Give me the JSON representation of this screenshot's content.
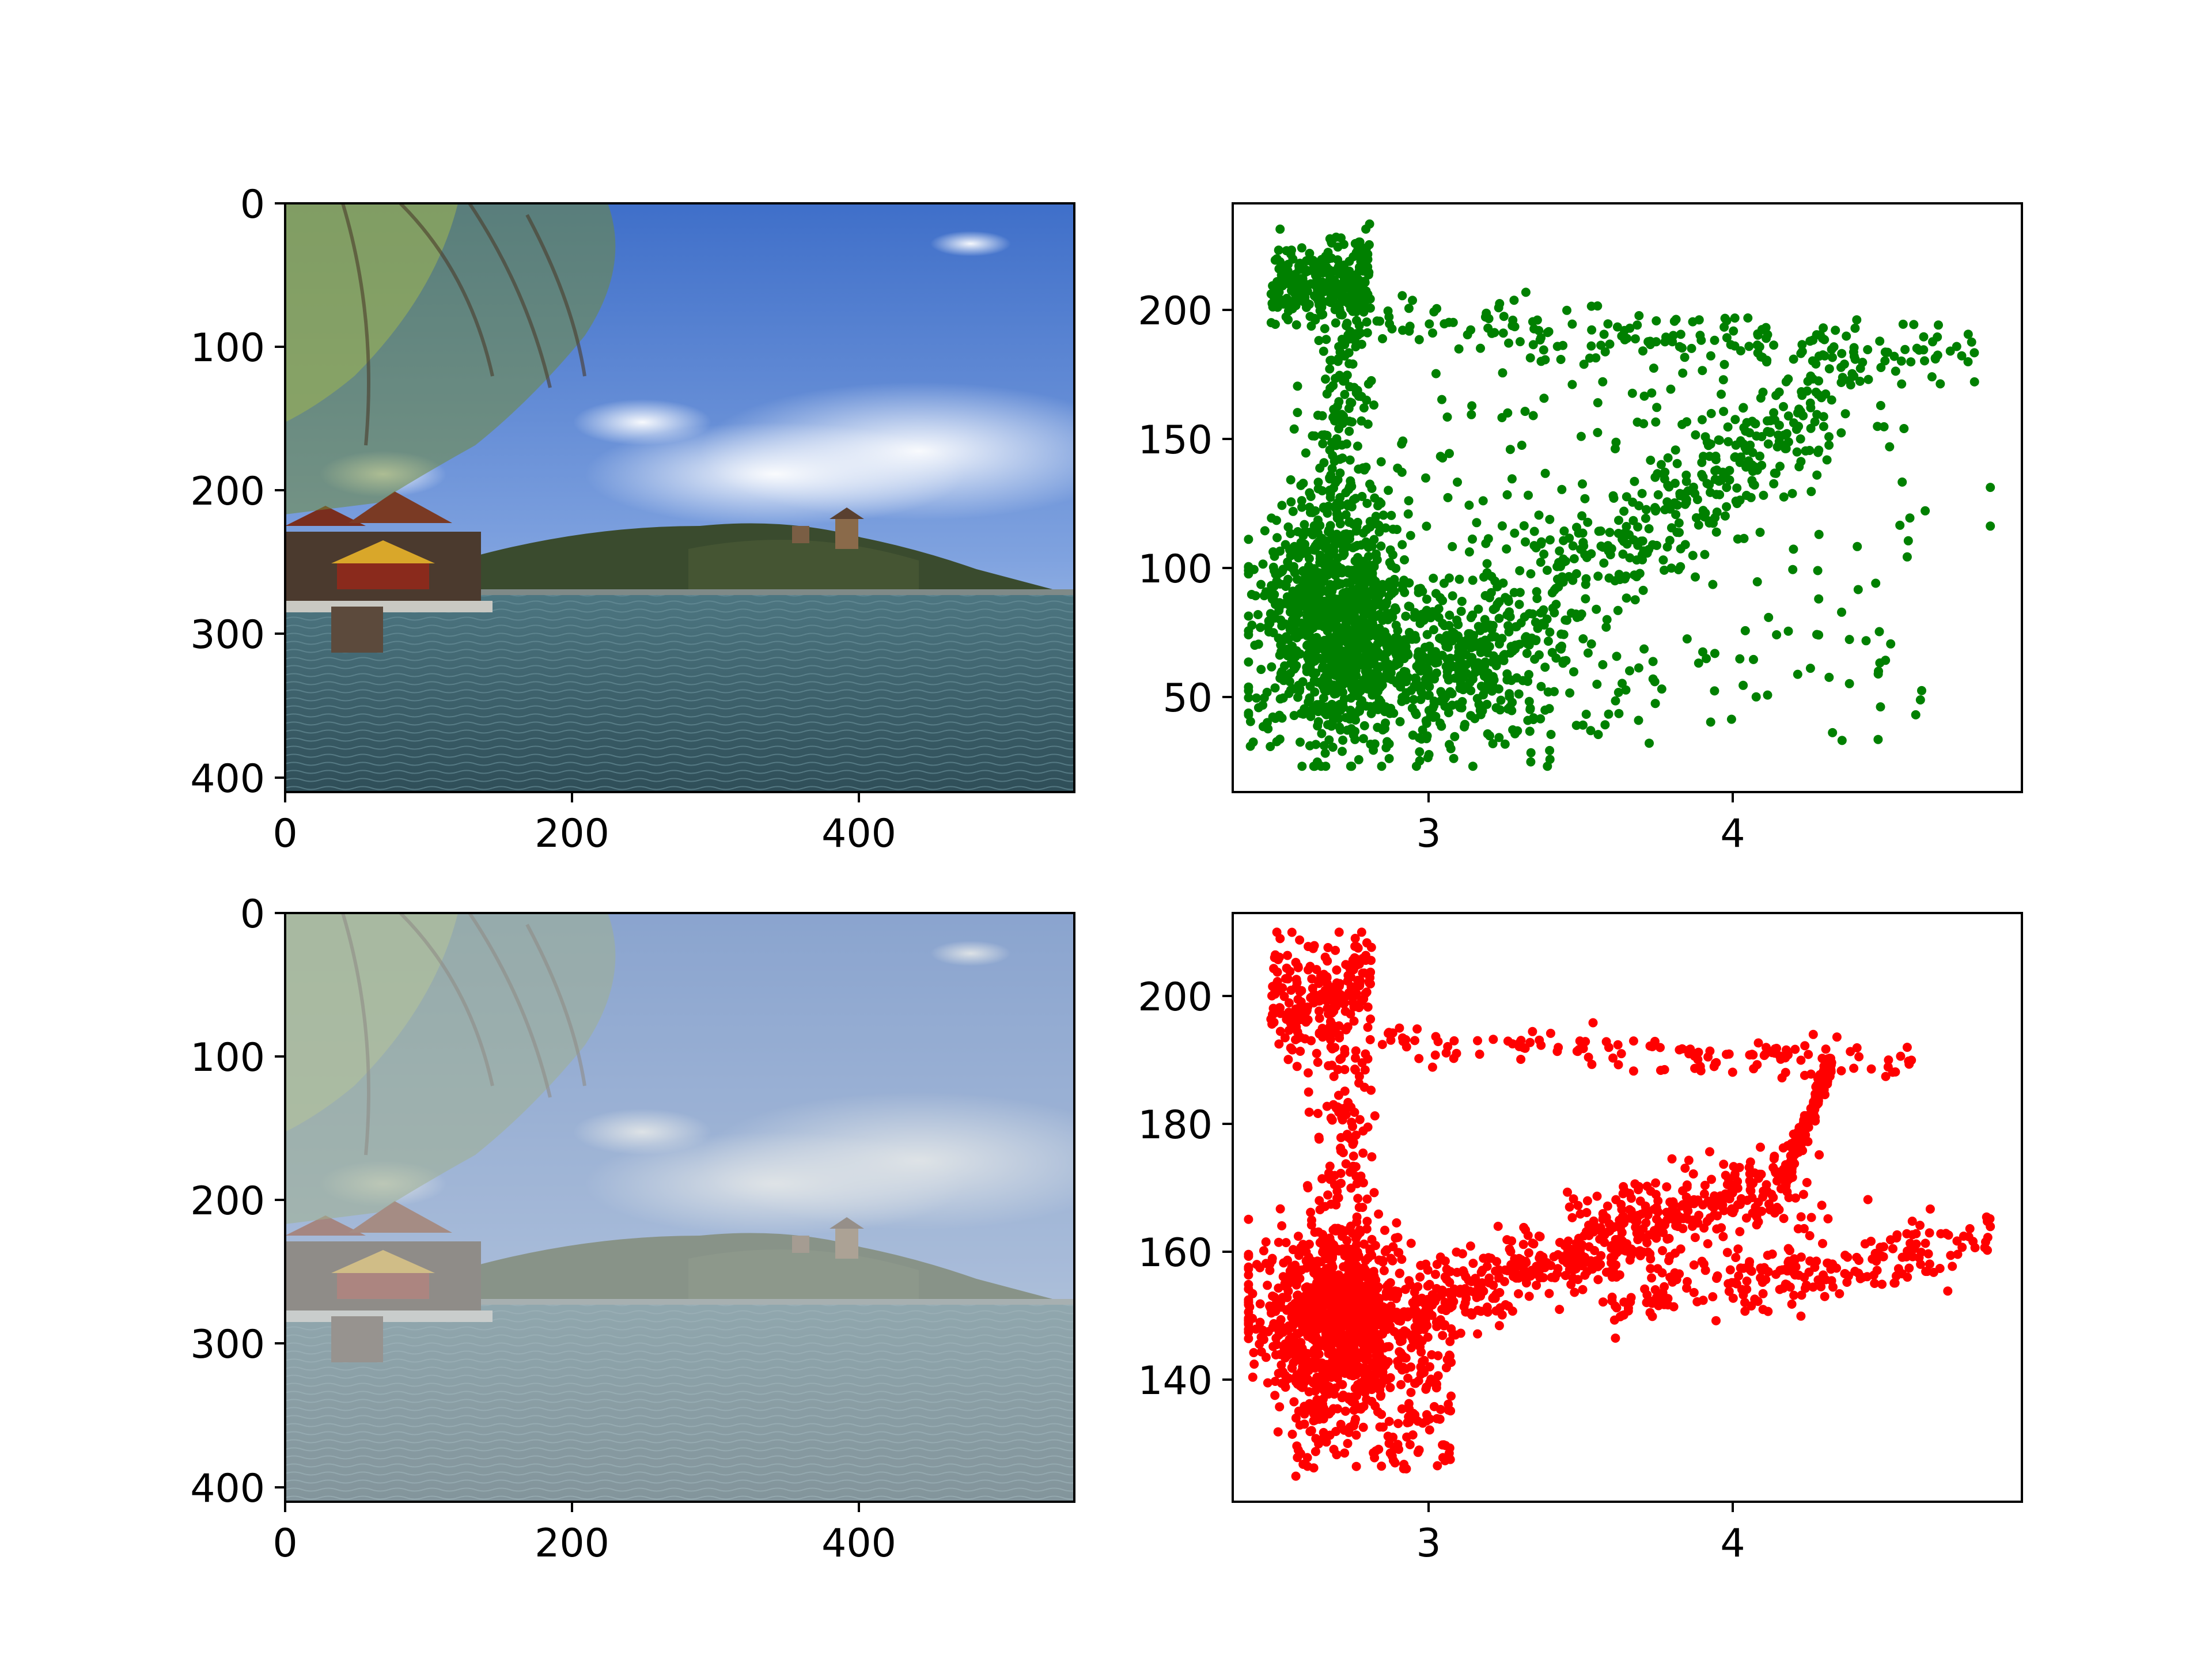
{
  "figure": {
    "layout": "2x2 grid"
  },
  "chart_data": [
    {
      "type": "image",
      "panel": "top-left",
      "content": "photo of lake with pavilion, willow branches and hill with temple (original)",
      "xticks": [
        "0",
        "200",
        "400"
      ],
      "yticks": [
        "0",
        "100",
        "200",
        "300",
        "400"
      ],
      "xlim": [
        0,
        550
      ],
      "ylim": [
        410,
        0
      ],
      "haze": 0.0
    },
    {
      "type": "scatter",
      "panel": "top-right",
      "color": "#008000",
      "xticks": [
        "3",
        "4"
      ],
      "yticks": [
        "50",
        "100",
        "150",
        "200"
      ],
      "xlim": [
        2.4,
        4.9
      ],
      "ylim": [
        12,
        240
      ],
      "num_points": 2600,
      "shape_description": "dense cluster near x=2.7, y 40-130; diagonal band from (3.0,60) to (4.3,170); top band from (2.5,210) to (4.8,180)",
      "sample_points": [
        [
          2.55,
          230
        ],
        [
          2.8,
          225
        ],
        [
          2.6,
          205
        ],
        [
          2.7,
          120
        ],
        [
          2.6,
          80
        ],
        [
          2.9,
          60
        ],
        [
          3.1,
          25
        ],
        [
          3.5,
          80
        ],
        [
          4.0,
          110
        ],
        [
          4.2,
          140
        ],
        [
          4.5,
          175
        ],
        [
          4.8,
          130
        ],
        [
          4.8,
          115
        ],
        [
          4.45,
          62
        ],
        [
          4.3,
          35
        ]
      ]
    },
    {
      "type": "image",
      "panel": "bottom-left",
      "content": "same photo with haze applied",
      "xticks": [
        "0",
        "200",
        "400"
      ],
      "yticks": [
        "0",
        "100",
        "200",
        "300",
        "400"
      ],
      "xlim": [
        0,
        550
      ],
      "ylim": [
        410,
        0
      ],
      "haze": 0.55
    },
    {
      "type": "scatter",
      "panel": "bottom-right",
      "color": "#ff0000",
      "xticks": [
        "3",
        "4"
      ],
      "yticks": [
        "140",
        "160",
        "180",
        "200"
      ],
      "xlim": [
        2.4,
        4.9
      ],
      "ylim": [
        121,
        213
      ],
      "num_points": 2600,
      "shape_description": "dense cluster near x=2.7, y 140-160; band rising from (3.0,150) to (4.2,175) to (4.5,190); lower band to (4.8,163)",
      "sample_points": [
        [
          2.55,
          209
        ],
        [
          2.8,
          205
        ],
        [
          2.6,
          198
        ],
        [
          2.65,
          165
        ],
        [
          2.7,
          145
        ],
        [
          2.6,
          125
        ],
        [
          3.0,
          150
        ],
        [
          3.5,
          160
        ],
        [
          4.0,
          170
        ],
        [
          4.2,
          190
        ],
        [
          4.55,
          190
        ],
        [
          4.8,
          164
        ],
        [
          4.6,
          157
        ],
        [
          4.2,
          150
        ]
      ]
    }
  ]
}
